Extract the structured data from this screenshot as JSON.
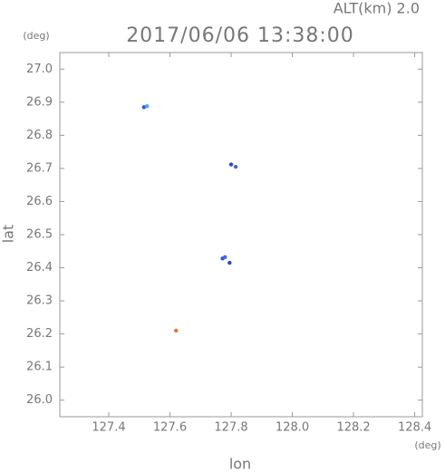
{
  "chart_data": {
    "type": "scatter",
    "title": "2017/06/06 13:38:00",
    "altitude_label": "ALT(km) 2.0",
    "y_unit": "(deg)",
    "x_unit": "(deg)",
    "xlabel": "lon",
    "ylabel": "lat",
    "x": [
      127.515,
      127.525,
      127.8,
      127.815,
      127.772,
      127.78,
      127.795,
      127.62
    ],
    "values": [
      26.885,
      26.888,
      26.712,
      26.705,
      26.428,
      26.432,
      26.415,
      26.21
    ],
    "colors": [
      "#3355dd",
      "#44aaee",
      "#3344cc",
      "#4466dd",
      "#3355dd",
      "#4466ee",
      "#3344cc",
      "#dd7733"
    ],
    "xlim": [
      127.24,
      128.425
    ],
    "ylim": [
      25.95,
      27.05
    ],
    "xticks": [
      127.4,
      127.6,
      127.8,
      {
        "value": 128.0,
        "label": "128.0"
      },
      128.2,
      128.4
    ],
    "yticks": [
      {
        "value": 26.0,
        "label": "26.0"
      },
      26.1,
      26.2,
      26.3,
      26.4,
      26.5,
      26.6,
      26.7,
      26.8,
      26.9,
      {
        "value": 27.0,
        "label": "27.0"
      }
    ],
    "grid": false
  }
}
